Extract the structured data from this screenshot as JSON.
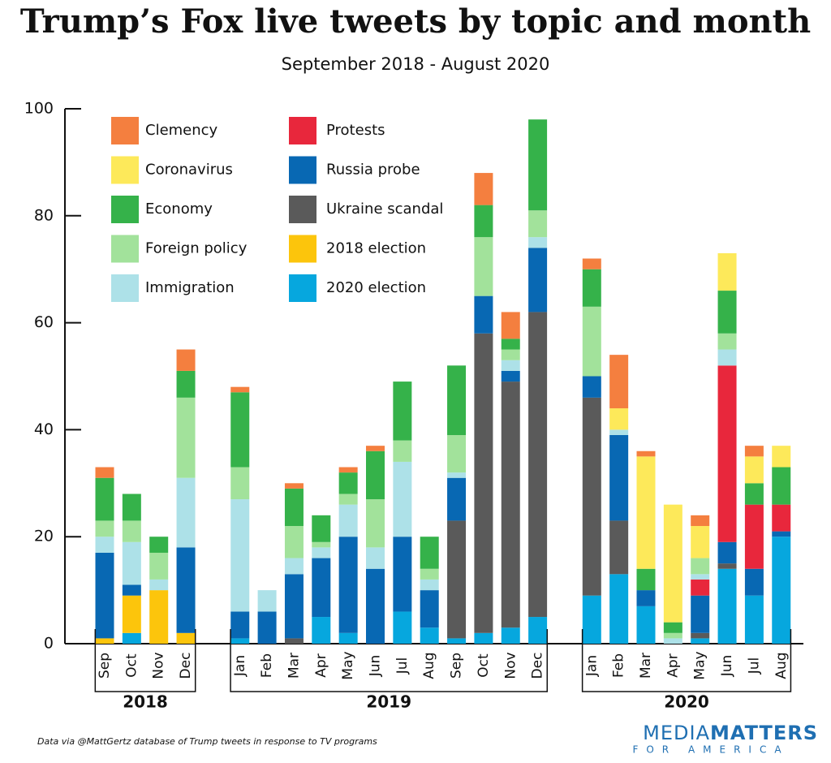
{
  "chart_data": {
    "type": "stacked-bar",
    "title": "Trump’s Fox live tweets by topic and month",
    "subtitle": "September 2018 - August 2020",
    "groups": [
      {
        "label": "2018",
        "categories": [
          "Sep",
          "Oct",
          "Nov",
          "Dec"
        ]
      },
      {
        "label": "2019",
        "categories": [
          "Jan",
          "Feb",
          "Mar",
          "Apr",
          "May",
          "Jun",
          "Jul",
          "Aug",
          "Sep",
          "Oct",
          "Nov",
          "Dec"
        ]
      },
      {
        "label": "2020",
        "categories": [
          "Jan",
          "Feb",
          "Mar",
          "Apr",
          "May",
          "Jun",
          "Jul",
          "Aug"
        ]
      }
    ],
    "series": [
      {
        "name": "Clemency",
        "color": "#f47f3f",
        "values": [
          2,
          0,
          0,
          4,
          1,
          0,
          1,
          0,
          1,
          1,
          0,
          0,
          0,
          6,
          5,
          0,
          2,
          10,
          1,
          0,
          2,
          0,
          2,
          0
        ]
      },
      {
        "name": "Coronavirus",
        "color": "#fde95a",
        "values": [
          0,
          0,
          0,
          0,
          0,
          0,
          0,
          0,
          0,
          0,
          0,
          0,
          0,
          0,
          0,
          0,
          0,
          4,
          21,
          22,
          6,
          7,
          5,
          4
        ]
      },
      {
        "name": "Economy",
        "color": "#35b24a",
        "values": [
          8,
          5,
          3,
          5,
          14,
          0,
          7,
          5,
          4,
          9,
          11,
          6,
          13,
          6,
          2,
          17,
          7,
          0,
          4,
          2,
          0,
          8,
          4,
          7
        ]
      },
      {
        "name": "Foreign policy",
        "color": "#a2e29b",
        "values": [
          3,
          4,
          5,
          15,
          6,
          0,
          6,
          1,
          2,
          9,
          4,
          2,
          7,
          11,
          2,
          5,
          13,
          0,
          0,
          1,
          3,
          3,
          0,
          0
        ]
      },
      {
        "name": "Immigration",
        "color": "#ade1e8",
        "values": [
          3,
          8,
          2,
          13,
          21,
          4,
          3,
          2,
          6,
          4,
          14,
          2,
          1,
          0,
          2,
          2,
          0,
          1,
          0,
          1,
          1,
          3,
          0,
          0
        ]
      },
      {
        "name": "Protests",
        "color": "#e8273c",
        "values": [
          0,
          0,
          0,
          0,
          0,
          0,
          0,
          0,
          0,
          0,
          0,
          0,
          0,
          0,
          0,
          0,
          0,
          0,
          0,
          0,
          3,
          33,
          12,
          5
        ]
      },
      {
        "name": "Russia probe",
        "color": "#0868b3",
        "values": [
          16,
          2,
          0,
          16,
          5,
          6,
          12,
          11,
          18,
          14,
          14,
          7,
          8,
          7,
          2,
          12,
          4,
          16,
          3,
          0,
          7,
          4,
          5,
          1
        ]
      },
      {
        "name": "Ukraine scandal",
        "color": "#5a5a5a",
        "values": [
          0,
          0,
          0,
          0,
          0,
          0,
          1,
          0,
          0,
          0,
          0,
          0,
          22,
          56,
          46,
          57,
          37,
          10,
          0,
          0,
          1,
          1,
          0,
          0
        ]
      },
      {
        "name": "2018 election",
        "color": "#fcc50c",
        "values": [
          1,
          7,
          10,
          2,
          0,
          0,
          0,
          0,
          0,
          0,
          0,
          0,
          0,
          0,
          0,
          0,
          0,
          0,
          0,
          0,
          0,
          0,
          0,
          0
        ]
      },
      {
        "name": "2020 election",
        "color": "#06a7de",
        "values": [
          0,
          2,
          0,
          0,
          1,
          0,
          0,
          5,
          2,
          0,
          6,
          3,
          1,
          2,
          3,
          5,
          9,
          13,
          7,
          0,
          1,
          14,
          9,
          20
        ]
      }
    ],
    "ylim": [
      0,
      100
    ],
    "yticks": [
      0,
      20,
      40,
      60,
      80,
      100
    ],
    "source": "Data via @MattGertz database of Trump tweets in response to TV programs",
    "logo": {
      "line1a": "MEDIA",
      "line1b": "MATTERS",
      "line2": "FOR AMERICA"
    }
  }
}
